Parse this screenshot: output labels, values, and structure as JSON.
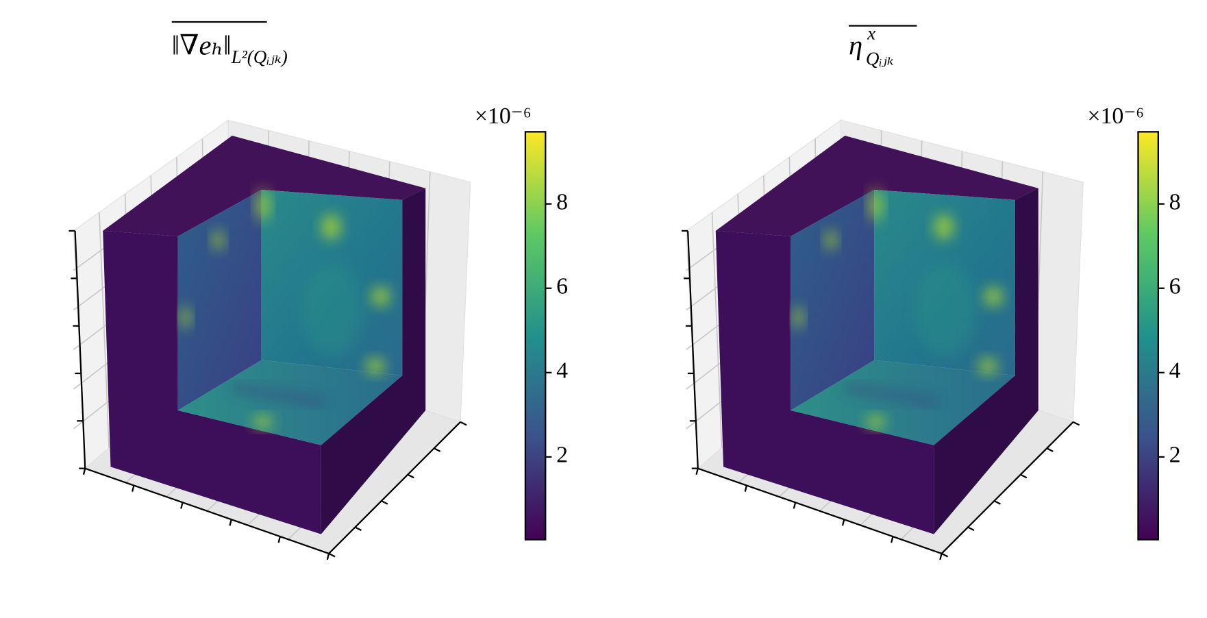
{
  "chart_data": [
    {
      "type": "volume3d",
      "title": {
        "text": "‖∇eₕ‖",
        "subscript": "L²(Qᵢⱼₖ)"
      },
      "colormap": "viridis",
      "clim": [
        0.04,
        9.71
      ],
      "cticks": [
        2,
        4,
        6,
        8
      ],
      "offset_label": "×10⁻⁶"
    },
    {
      "type": "volume3d",
      "title": {
        "text": "η",
        "superscript": "x",
        "subscript": "Qᵢⱼₖ"
      },
      "colormap": "viridis",
      "clim": [
        0.04,
        9.71
      ],
      "cticks": [
        2,
        4,
        6,
        8
      ],
      "offset_label": "×10⁻⁶"
    }
  ]
}
